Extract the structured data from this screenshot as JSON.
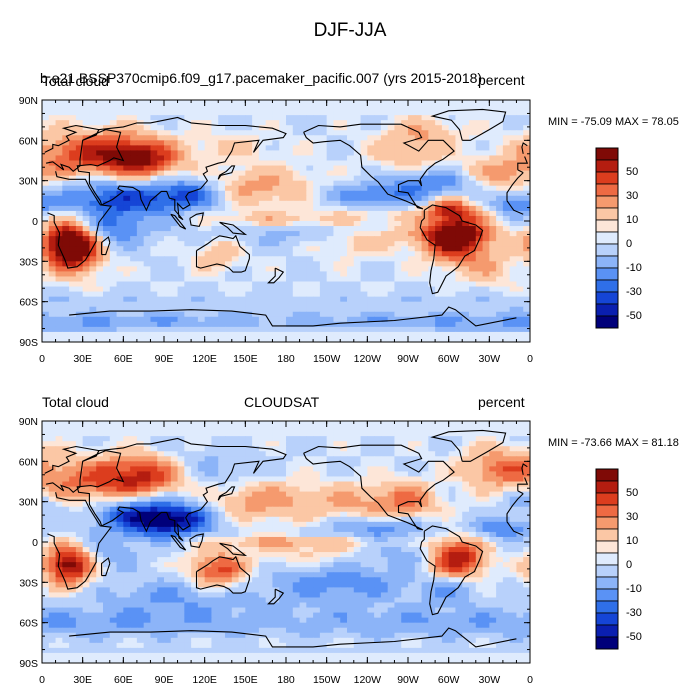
{
  "title": "DJF-JJA",
  "colors": {
    "palette": [
      "#00007a",
      "#0a1fb0",
      "#1545d6",
      "#2f6fe8",
      "#5a92f5",
      "#8cb4f8",
      "#b8d1fb",
      "#dfebfd",
      "#fde6d8",
      "#fbc7a5",
      "#f59a6e",
      "#ee6a43",
      "#dc3d1e",
      "#b41d10",
      "#7f0a06"
    ],
    "land_outline": "#000000"
  },
  "panels": [
    {
      "left_string": "Total cloud",
      "overlay_string": "b.e21.BSSP370cmip6.f09_g17.pacemaker_pacific.007 (yrs 2015-2018)",
      "center_string": "",
      "right_string": "percent",
      "min_max": "MIN = -75.09 MAX =  78.05"
    },
    {
      "left_string": "Total cloud",
      "overlay_string": "",
      "center_string": "CLOUDSAT",
      "right_string": "percent",
      "min_max": "MIN = -73.66 MAX =  81.18"
    }
  ],
  "axes": {
    "lat_ticks": [
      "90N",
      "60N",
      "30N",
      "0",
      "30S",
      "60S",
      "90S"
    ],
    "lon_ticks": [
      "0",
      "30E",
      "60E",
      "90E",
      "120E",
      "150E",
      "180",
      "150W",
      "120W",
      "90W",
      "60W",
      "30W",
      "0"
    ]
  },
  "colorbar": {
    "labels": [
      "50",
      "30",
      "10",
      "0",
      "-10",
      "-30",
      "-50"
    ]
  }
}
